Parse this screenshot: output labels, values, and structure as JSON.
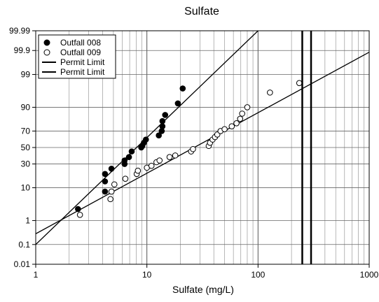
{
  "chart_data": {
    "type": "scatter",
    "title": "Sulfate",
    "xlabel": "Sulfate (mg/L)",
    "ylabel": "",
    "xscale": "log",
    "yscale": "probability",
    "xlim": [
      1,
      1000
    ],
    "ylim": [
      0.01,
      99.99
    ],
    "x_ticks": [
      1,
      10,
      100,
      1000
    ],
    "x_tick_labels": [
      "1",
      "10",
      "100",
      "1000"
    ],
    "y_ticks": [
      0.01,
      0.1,
      1,
      10,
      30,
      50,
      70,
      90,
      99,
      99.9,
      99.99
    ],
    "y_tick_labels": [
      "0.01",
      "0.1",
      "1",
      "10",
      "30",
      "50",
      "70",
      "90",
      "99",
      "99.9",
      "99.99"
    ],
    "grid": true,
    "legend_position": "top-left",
    "series": [
      {
        "name": "Outfall 008",
        "marker": "filled-circle",
        "color": "#000000",
        "points": [
          [
            2.4,
            2.5
          ],
          [
            4.2,
            8
          ],
          [
            4.2,
            14
          ],
          [
            4.2,
            20
          ],
          [
            4.8,
            25
          ],
          [
            6.3,
            30
          ],
          [
            6.3,
            34
          ],
          [
            6.9,
            38
          ],
          [
            7.3,
            45
          ],
          [
            8.9,
            50
          ],
          [
            9.1,
            52
          ],
          [
            9.4,
            56
          ],
          [
            9.8,
            60
          ],
          [
            12.8,
            65
          ],
          [
            13.6,
            70
          ],
          [
            13.8,
            75
          ],
          [
            13.8,
            80
          ],
          [
            14.6,
            85
          ],
          [
            19,
            92
          ],
          [
            21,
            97
          ]
        ],
        "fit_line": {
          "type": "line",
          "points": [
            [
              1,
              0.1
            ],
            [
              100,
              99.99
            ]
          ]
        }
      },
      {
        "name": "Outfall 009",
        "marker": "open-circle",
        "color": "#000000",
        "points": [
          [
            2.5,
            1.6
          ],
          [
            4.7,
            5
          ],
          [
            4.8,
            8
          ],
          [
            5.1,
            12
          ],
          [
            6.4,
            16
          ],
          [
            8.1,
            20
          ],
          [
            8.3,
            23
          ],
          [
            10,
            26
          ],
          [
            11,
            28
          ],
          [
            12.2,
            32
          ],
          [
            13,
            34
          ],
          [
            16,
            38
          ],
          [
            18,
            40
          ],
          [
            25,
            45
          ],
          [
            26,
            48
          ],
          [
            36,
            52
          ],
          [
            37,
            56
          ],
          [
            39,
            60
          ],
          [
            41,
            63
          ],
          [
            43,
            66
          ],
          [
            46,
            70
          ],
          [
            50,
            72
          ],
          [
            58,
            75
          ],
          [
            64,
            78
          ],
          [
            69,
            82
          ],
          [
            72,
            86
          ],
          [
            80,
            90
          ],
          [
            128,
            96
          ],
          [
            235,
            98
          ]
        ],
        "fit_line": {
          "type": "line",
          "points": [
            [
              1,
              0.3
            ],
            [
              1000,
              99.88
            ]
          ]
        }
      },
      {
        "name": "Permit Limit",
        "type": "vertical-line",
        "x": 250,
        "color": "#000000"
      },
      {
        "name": "Permit Limit",
        "type": "vertical-line",
        "x": 300,
        "color": "#000000"
      }
    ]
  }
}
